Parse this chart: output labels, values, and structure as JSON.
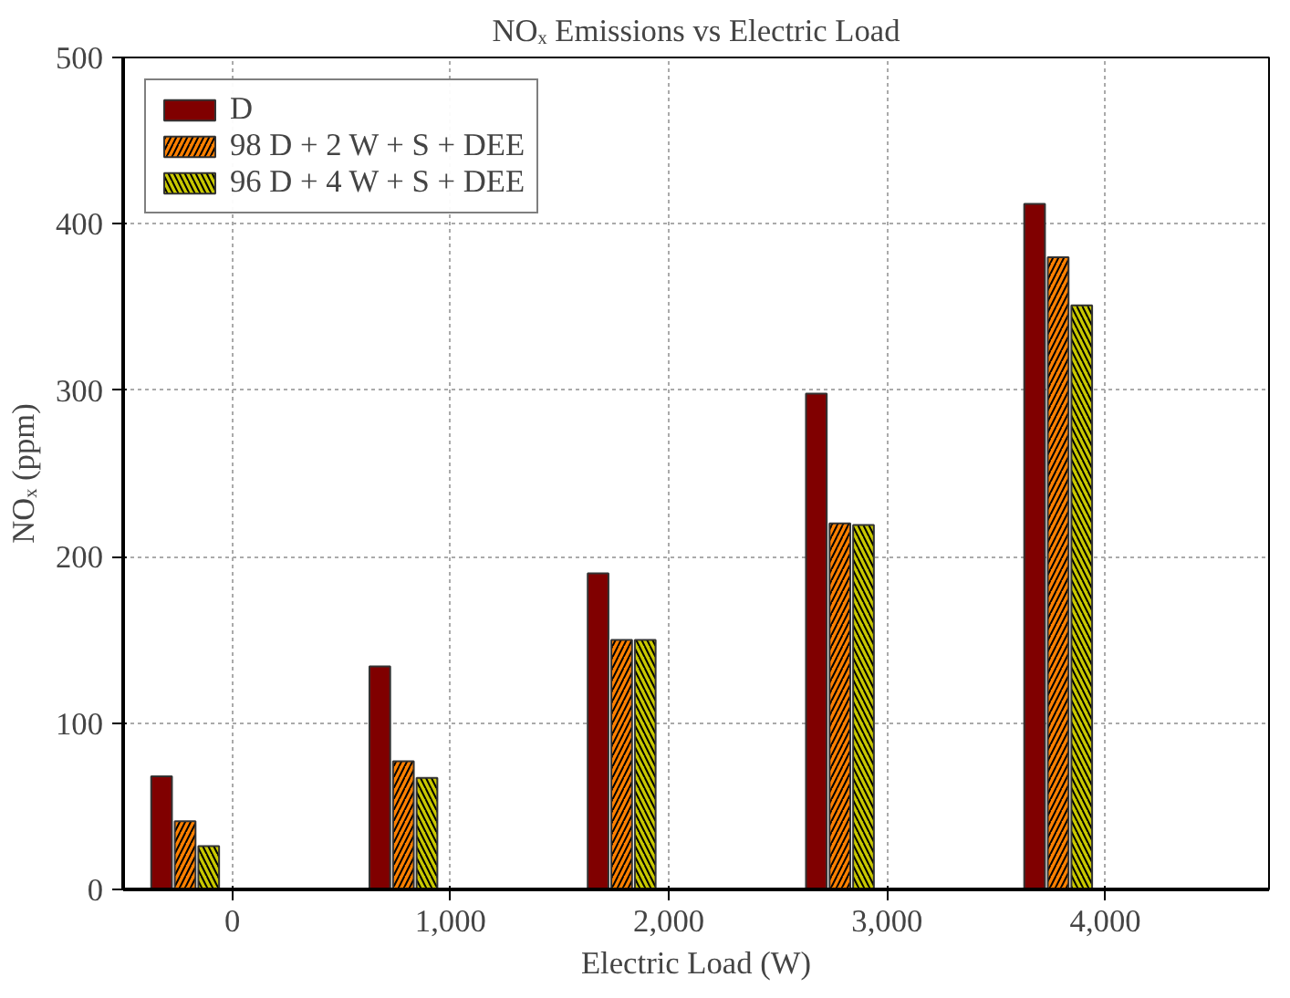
{
  "chart_data": {
    "type": "bar",
    "title": "NOₓ Emissions vs Electric Load",
    "xlabel": "Electric Load (W)",
    "ylabel": "NOₓ (ppm)",
    "x": [
      0,
      1000,
      2000,
      3000,
      4000
    ],
    "series": [
      {
        "name": "D",
        "color": "#800000",
        "values": [
          68,
          134,
          190,
          298,
          412
        ]
      },
      {
        "name": "98 D + 2 W + S + DEE",
        "color": "#ff8000",
        "values": [
          41,
          77,
          150,
          220,
          380
        ]
      },
      {
        "name": "96 D + 4 W + S + DEE",
        "color": "#c8c800",
        "values": [
          26,
          67,
          150,
          219,
          351
        ]
      }
    ],
    "xlim": [
      -500,
      4750
    ],
    "ylim": [
      0,
      500
    ],
    "xticks": [
      {
        "value": 0,
        "label": "0"
      },
      {
        "value": 1000,
        "label": "1,000"
      },
      {
        "value": 2000,
        "label": "2,000"
      },
      {
        "value": 3000,
        "label": "3,000"
      },
      {
        "value": 4000,
        "label": "4,000"
      }
    ],
    "yticks": [
      0,
      100,
      200,
      300,
      400,
      500
    ],
    "grid": true,
    "legend": "top left"
  }
}
